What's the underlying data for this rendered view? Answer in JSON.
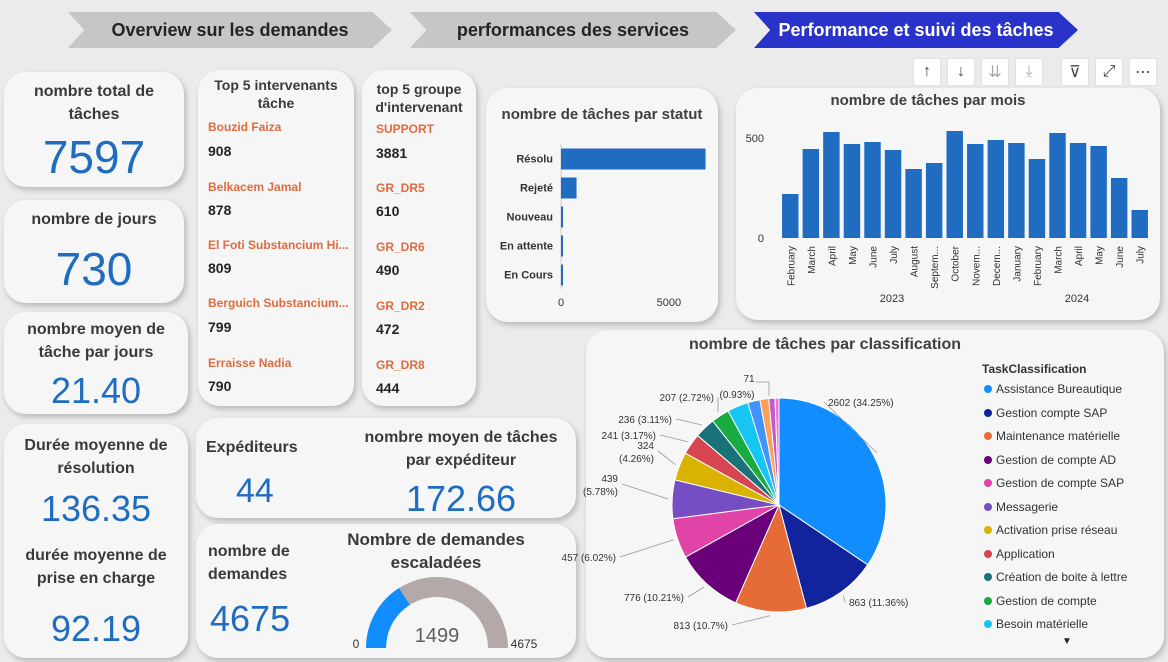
{
  "tabs": [
    {
      "label": "Overview sur les demandes"
    },
    {
      "label": "performances des services"
    },
    {
      "label": "Performance et suivi des tâches"
    }
  ],
  "kpis": {
    "total_taches": {
      "title": "nombre total de tâches",
      "value": "7597"
    },
    "jours": {
      "title": "nombre de jours",
      "value": "730"
    },
    "moyen_jour": {
      "title": "nombre moyen de tâche par jours",
      "value": "21.40"
    },
    "duree_resolution": {
      "title": "Durée moyenne de résolution",
      "value": "136.35"
    },
    "duree_prise": {
      "title": "durée moyenne de prise en charge",
      "value": "92.19"
    },
    "expediteurs": {
      "title": "Expéditeurs",
      "value": "44"
    },
    "moyen_expediteur": {
      "title": "nombre moyen de tâches par expéditeur",
      "value": "172.66"
    },
    "demandes": {
      "title": "nombre de demandes",
      "value": "4675"
    }
  },
  "top_intervenants": {
    "title": "Top 5 intervenants tâche",
    "items": [
      {
        "name": "Bouzid Faiza",
        "value": "908"
      },
      {
        "name": "Belkacem Jamal",
        "value": "878"
      },
      {
        "name": "El Foti Substancium Hi...",
        "value": "809"
      },
      {
        "name": "Berguich Substancium...",
        "value": "799"
      },
      {
        "name": "Erraisse Nadia",
        "value": "790"
      }
    ]
  },
  "top_groupes": {
    "title": "top 5 groupe d'intervenant",
    "items": [
      {
        "name": "SUPPORT",
        "value": "3881"
      },
      {
        "name": "GR_DR5",
        "value": "610"
      },
      {
        "name": "GR_DR6",
        "value": "490"
      },
      {
        "name": "GR_DR2",
        "value": "472"
      },
      {
        "name": "GR_DR8",
        "value": "444"
      }
    ]
  },
  "gauge": {
    "title": "Nombre de demandes escaladées",
    "min": "0",
    "value_label": "1499",
    "max_label": "4675",
    "value": 1499,
    "max": 4675
  },
  "toolbar": {
    "icons": [
      "arrow-up-icon",
      "arrow-down-icon",
      "double-arrow-down-icon",
      "expand-hierarchy-icon",
      "filter-icon",
      "focus-mode-icon",
      "more-options-icon"
    ]
  },
  "colors": {
    "bar": "#1f6cc1",
    "accent": "#2a33c9",
    "orange_text": "#e06b3e",
    "kpi_value": "#1f6cc1"
  },
  "chart_data": [
    {
      "type": "bar",
      "orientation": "horizontal",
      "title": "nombre de tâches par statut",
      "categories": [
        "Résolu",
        "Rejeté",
        "Nouveau",
        "En attente",
        "En Cours"
      ],
      "values": [
        6700,
        720,
        40,
        40,
        40
      ],
      "xlim": [
        0,
        7000
      ],
      "xticks": [
        "0",
        "5000"
      ]
    },
    {
      "type": "bar",
      "title": "nombre de tâches par mois",
      "categories": [
        "February",
        "March",
        "April",
        "May",
        "June",
        "July",
        "August",
        "Septem...",
        "October",
        "Novem...",
        "Decem...",
        "January",
        "February",
        "March",
        "April",
        "May",
        "June",
        "July"
      ],
      "values": [
        220,
        445,
        530,
        470,
        480,
        440,
        345,
        375,
        535,
        470,
        490,
        475,
        395,
        525,
        475,
        460,
        300,
        140
      ],
      "year_labels": [
        "2023",
        "2024"
      ],
      "ylim": [
        0,
        600
      ],
      "yticks": [
        "0",
        "500"
      ]
    },
    {
      "type": "pie",
      "title": "nombre de tâches par classification",
      "legend_title": "TaskClassification",
      "slices": [
        {
          "name": "Assistance Bureautique",
          "value": 2602,
          "label": "2602 (34.25%)",
          "color": "#118dff"
        },
        {
          "name": "Gestion compte SAP",
          "value": 863,
          "label": "863 (11.36%)",
          "color": "#12239e"
        },
        {
          "name": "Maintenance matérielle",
          "value": 813,
          "label": "813 (10.7%)",
          "color": "#e66c37"
        },
        {
          "name": "Gestion de compte AD",
          "value": 776,
          "label": "776 (10.21%)",
          "color": "#6b007b"
        },
        {
          "name": "Gestion de compte SAP",
          "value": 457,
          "label": "457 (6.02%)",
          "color": "#e044a7"
        },
        {
          "name": "Messagerie",
          "value": 439,
          "label": "439 (5.78%)",
          "color": "#744ec2"
        },
        {
          "name": "Activation prise réseau",
          "value": 324,
          "label": "324 (4.26%)",
          "color": "#d9b300"
        },
        {
          "name": "Application",
          "value": 241,
          "label": "241 (3.17%)",
          "color": "#d64550"
        },
        {
          "name": "Création de boite à lettre",
          "value": 236,
          "label": "236 (3.11%)",
          "color": "#197278"
        },
        {
          "name": "Gestion de compte",
          "value": 207,
          "label": "207 (2.72%)",
          "color": "#1aab40"
        },
        {
          "name": "Besoin matérielle",
          "value": 240,
          "label": "",
          "color": "#15c6f4"
        },
        {
          "name": "",
          "value": 140,
          "label": "",
          "color": "#4092ff"
        },
        {
          "name": "",
          "value": 100,
          "label": "",
          "color": "#ffa058"
        },
        {
          "name": "",
          "value": 71,
          "label": "71 (0.93%)",
          "color": "#be5dc9"
        },
        {
          "name": "",
          "value": 45,
          "label": "",
          "color": "#f472d0"
        }
      ]
    }
  ]
}
